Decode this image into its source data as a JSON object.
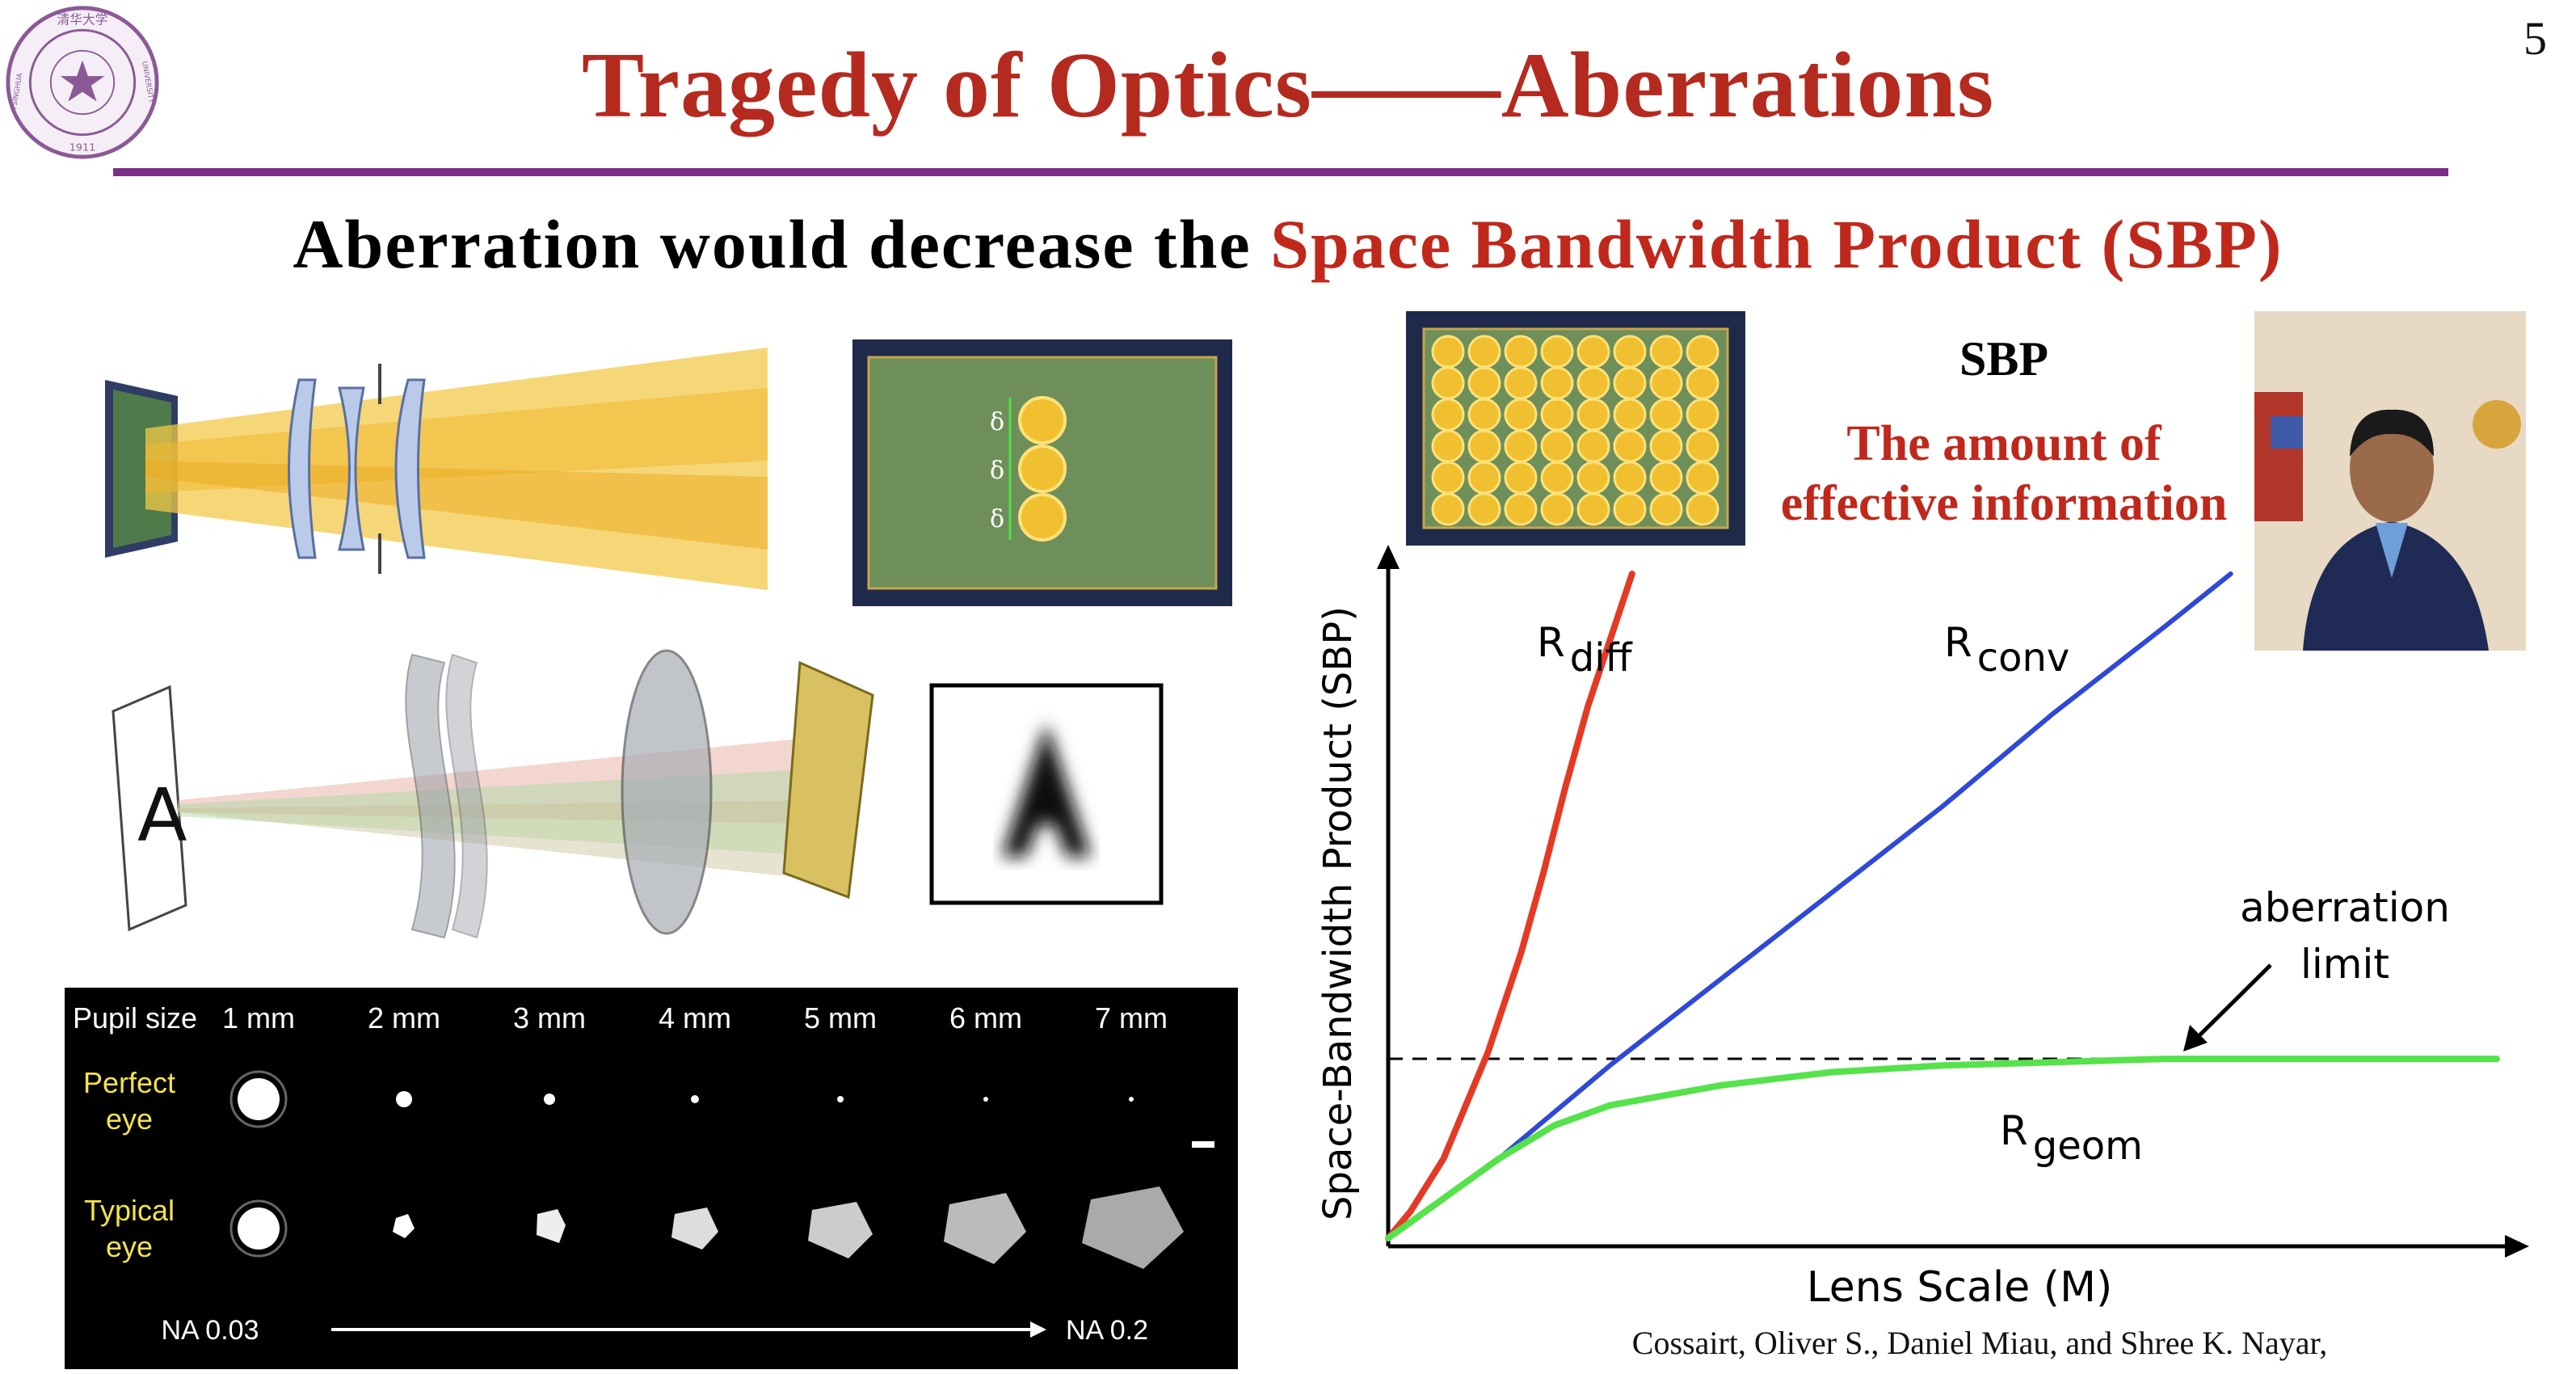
{
  "slide": {
    "page_number": "5",
    "title": "Tragedy of Optics——Aberrations",
    "subtitle_prefix": "Aberration would decrease the ",
    "subtitle_highlight": "Space Bandwidth Product (SBP)",
    "colors": {
      "title": "#b52a1f",
      "rule": "#7a2e86",
      "highlight": "#c0281c"
    }
  },
  "logo": {
    "name": "tsinghua-university-seal",
    "text_top": "清华大学",
    "text_left": "TSINGHUA",
    "text_right": "UNIVERSITY",
    "year": "1911"
  },
  "sensor_diagram": {
    "delta_symbol": "δ"
  },
  "eye_psf": {
    "pupil_label": "Pupil size",
    "pupil_sizes": [
      "1 mm",
      "2 mm",
      "3 mm",
      "4 mm",
      "5 mm",
      "6 mm",
      "7 mm"
    ],
    "row_perfect": [
      "Perfect",
      "eye"
    ],
    "row_typical": [
      "Typical",
      "eye"
    ],
    "na_start": "NA 0.03",
    "na_end": "NA 0.2"
  },
  "sbp_box": {
    "heading": "SBP",
    "description_line1": "The amount of",
    "description_line2": "effective information"
  },
  "citation": "Cossairt, Oliver S., Daniel Miau, and Shree K. Nayar,",
  "chart_data": {
    "type": "line",
    "xlabel": "Lens Scale (M)",
    "ylabel": "Space-Bandwidth Product (SBP)",
    "xlim": [
      0,
      10
    ],
    "ylim": [
      0,
      10
    ],
    "grid": false,
    "annotation": {
      "text_line1": "aberration",
      "text_line2": "limit"
    },
    "limit_line": {
      "name": "aberration limit",
      "y": 2.7,
      "style": "dashed"
    },
    "series": [
      {
        "name": "R diff",
        "label_main": "R",
        "label_sub": "diff",
        "color": "#e43a25",
        "x": [
          0,
          0.2,
          0.5,
          0.9,
          1.2,
          1.4,
          1.6,
          1.8,
          2.0,
          2.2
        ],
        "y": [
          0,
          0.4,
          1.2,
          2.8,
          4.3,
          5.5,
          6.8,
          8.0,
          9.0,
          10.0
        ]
      },
      {
        "name": "R conv",
        "label_main": "R",
        "label_sub": "conv",
        "color": "#2f49d6",
        "x": [
          0,
          1,
          2,
          3,
          4,
          5,
          6,
          7,
          7.6
        ],
        "y": [
          0,
          1.2,
          2.6,
          3.9,
          5.2,
          6.5,
          7.9,
          9.2,
          10.0
        ]
      },
      {
        "name": "R geom",
        "label_main": "R",
        "label_sub": "geom",
        "color": "#55e24a",
        "x": [
          0,
          0.5,
          1,
          1.5,
          2,
          3,
          4,
          5,
          6,
          7,
          8,
          9,
          10
        ],
        "y": [
          0,
          0.6,
          1.2,
          1.7,
          2.0,
          2.3,
          2.5,
          2.6,
          2.65,
          2.7,
          2.7,
          2.7,
          2.7
        ]
      }
    ]
  }
}
